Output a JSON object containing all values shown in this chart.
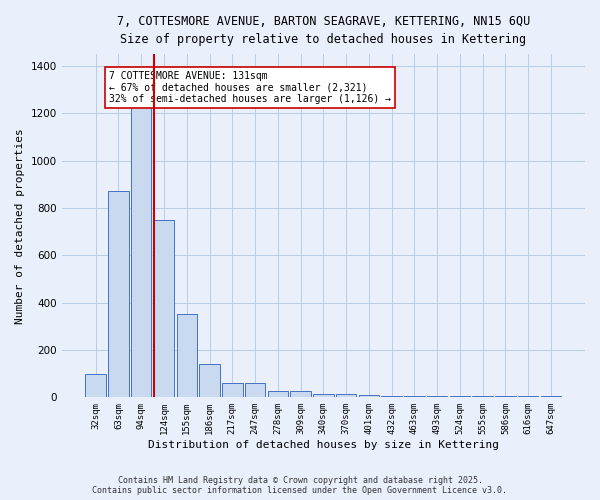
{
  "title_line1": "7, COTTESMORE AVENUE, BARTON SEAGRAVE, KETTERING, NN15 6QU",
  "title_line2": "Size of property relative to detached houses in Kettering",
  "xlabel": "Distribution of detached houses by size in Kettering",
  "ylabel": "Number of detached properties",
  "categories": [
    "32sqm",
    "63sqm",
    "94sqm",
    "124sqm",
    "155sqm",
    "186sqm",
    "217sqm",
    "247sqm",
    "278sqm",
    "309sqm",
    "340sqm",
    "370sqm",
    "401sqm",
    "432sqm",
    "463sqm",
    "493sqm",
    "524sqm",
    "555sqm",
    "586sqm",
    "616sqm",
    "647sqm"
  ],
  "values": [
    100,
    870,
    1270,
    750,
    350,
    140,
    60,
    60,
    25,
    25,
    15,
    15,
    10,
    5,
    5,
    5,
    5,
    5,
    5,
    5,
    5
  ],
  "bar_color": "#c9d9f0",
  "bar_edge_color": "#4472c4",
  "grid_color": "#b8cce4",
  "background_color": "#eaf0fb",
  "vline_color": "#cc0000",
  "annotation_text": "7 COTTESMORE AVENUE: 131sqm\n← 67% of detached houses are smaller (2,321)\n32% of semi-detached houses are larger (1,126) →",
  "annotation_box_color": "#ffffff",
  "annotation_box_edge": "#cc0000",
  "ylim": [
    0,
    1450
  ],
  "yticks": [
    0,
    200,
    400,
    600,
    800,
    1000,
    1200,
    1400
  ],
  "footer_line1": "Contains HM Land Registry data © Crown copyright and database right 2025.",
  "footer_line2": "Contains public sector information licensed under the Open Government Licence v3.0."
}
